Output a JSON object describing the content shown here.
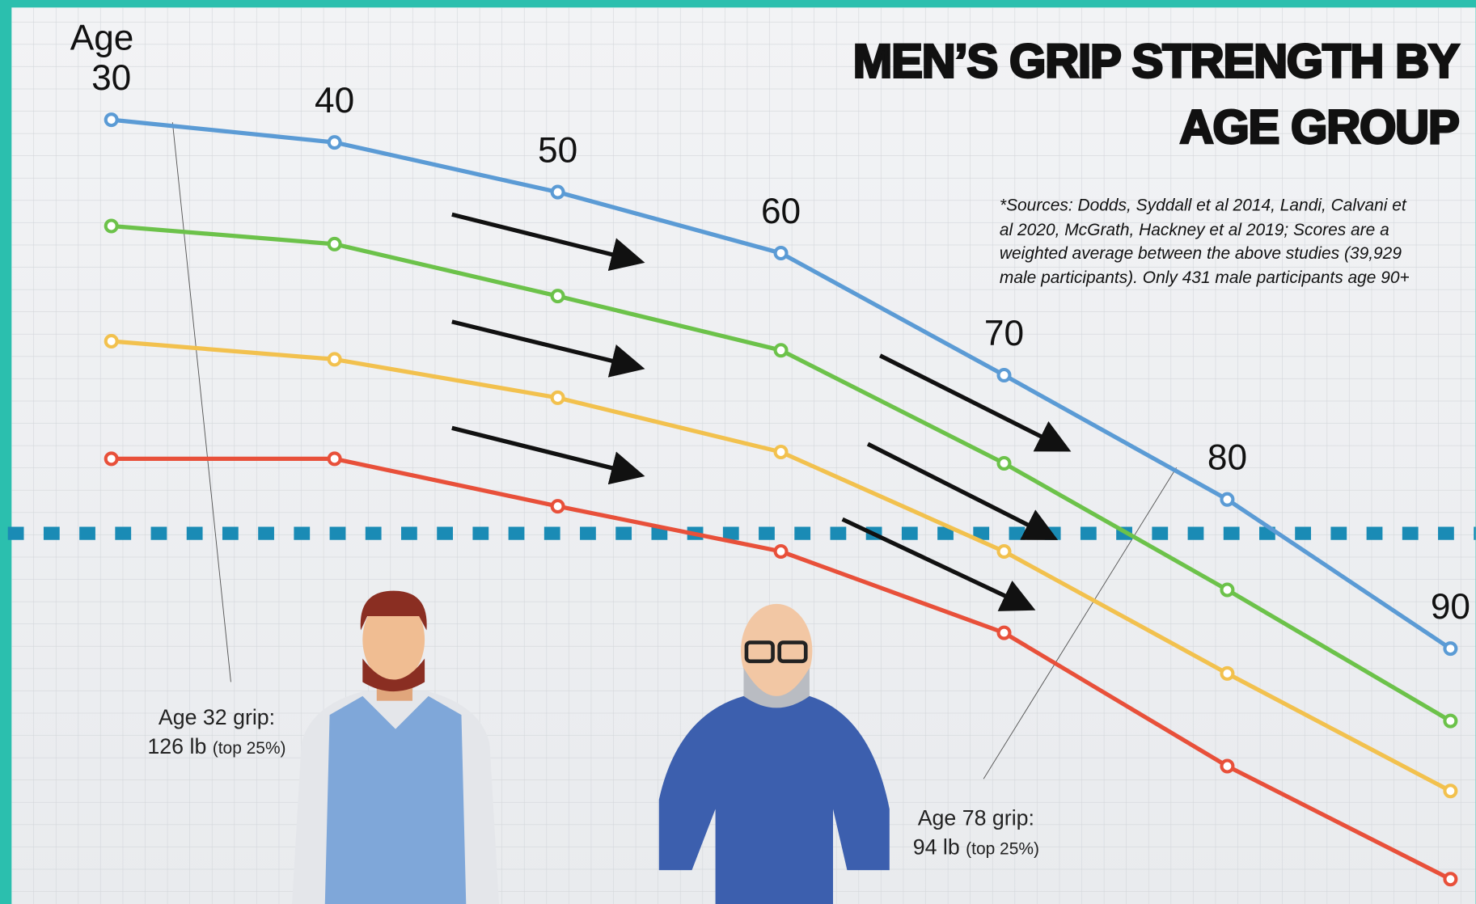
{
  "chart_data": {
    "type": "line",
    "title": [
      "MEN’S GRIP STRENGTH BY",
      "AGE GROUP"
    ],
    "x_label": "Age",
    "categories": [
      "30",
      "40",
      "50",
      "60",
      "70",
      "80",
      "90"
    ],
    "series": [
      {
        "color": "#5b9bd5",
        "values": [
          34.7,
          33.7,
          31.5,
          28.8,
          23.4,
          17.9,
          11.3
        ]
      },
      {
        "color": "#6cc24a",
        "values": [
          30.0,
          29.2,
          26.9,
          24.5,
          19.5,
          13.9,
          8.1
        ]
      },
      {
        "color": "#f2c14e",
        "values": [
          24.9,
          24.1,
          22.4,
          20.0,
          15.6,
          10.2,
          5.0
        ]
      },
      {
        "color": "#e8503a",
        "values": [
          19.7,
          19.7,
          17.6,
          15.6,
          12.0,
          6.1,
          1.1
        ]
      }
    ],
    "ylim": [
      0,
      40
    ],
    "reference_line": {
      "value": 16.4,
      "color": "#1a8bb5"
    },
    "sources": [
      "*Sources:  Dodds, Syddall et al 2014, Landi, Calvani et",
      "al 2020, McGrath, Hackney et al 2019; Scores are a",
      "weighted average between the above studies (39,929",
      "male participants). Only 431 male participants age 90+"
    ],
    "annotations": [
      {
        "text": "Age 32 grip:",
        "value_text": "126 lb",
        "note": "(top 25%)"
      },
      {
        "text": "Age 78 grip:",
        "value_text": "94 lb",
        "note": "(top 25%)"
      }
    ]
  }
}
